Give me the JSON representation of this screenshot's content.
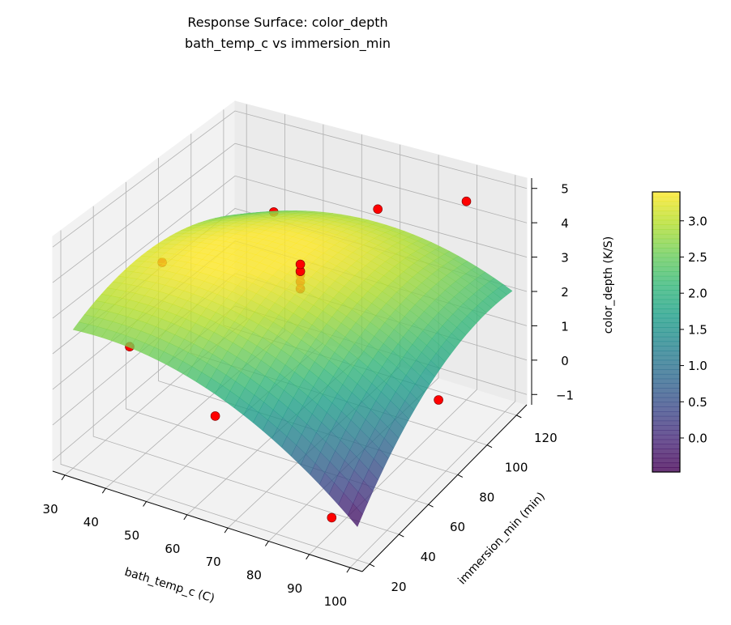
{
  "chart_data": {
    "type": "surface3d",
    "title": "Response Surface: color_depth",
    "subtitle": "bath_temp_c vs immersion_min",
    "xlabel": "bath_temp_c (C)",
    "ylabel": "immersion_min (min)",
    "zlabel": "color_depth (K/S)",
    "xlim": [
      27,
      103
    ],
    "ylim": [
      15,
      127
    ],
    "zlim": [
      -1.3,
      5.3
    ],
    "x_ticks": [
      30,
      40,
      50,
      60,
      70,
      80,
      90,
      100
    ],
    "y_ticks": [
      20,
      40,
      60,
      80,
      100,
      120
    ],
    "z_ticks": [
      -1,
      0,
      1,
      2,
      3,
      4,
      5
    ],
    "x_tick_labels": [
      "30",
      "40",
      "50",
      "60",
      "70",
      "80",
      "90",
      "100"
    ],
    "y_tick_labels": [
      "20",
      "40",
      "60",
      "80",
      "100",
      "120"
    ],
    "z_tick_labels": [
      "−1",
      "0",
      "1",
      "2",
      "3",
      "4",
      "5"
    ],
    "grid": true,
    "surface": {
      "model": "quadratic",
      "x_range": [
        30,
        100
      ],
      "y_range": [
        20,
        125
      ],
      "coefficients": {
        "intercept": 3.3,
        "u": -0.75,
        "v": 0.45,
        "u2": -0.9,
        "v2": -0.85,
        "uv": 0.75
      },
      "colormap": "viridis",
      "alpha": 0.8
    },
    "points": {
      "color": "#ff0000",
      "x": [
        40,
        90,
        40,
        90,
        30,
        100,
        65,
        65,
        65,
        65,
        65,
        65,
        65
      ],
      "y": [
        30,
        30,
        120,
        120,
        75,
        75,
        20,
        125,
        75,
        75,
        75,
        75,
        75
      ],
      "z": [
        2.1,
        -0.9,
        2.6,
        4.5,
        2.5,
        0.9,
        1.4,
        3.3,
        3.4,
        3.1,
        3.6,
        2.9,
        3.3
      ]
    },
    "colorbar": {
      "range": [
        -0.47,
        3.4
      ],
      "ticks": [
        0.0,
        0.5,
        1.0,
        1.5,
        2.0,
        2.5,
        3.0
      ],
      "tick_labels": [
        "0.0",
        "0.5",
        "1.0",
        "1.5",
        "2.0",
        "2.5",
        "3.0"
      ]
    }
  }
}
